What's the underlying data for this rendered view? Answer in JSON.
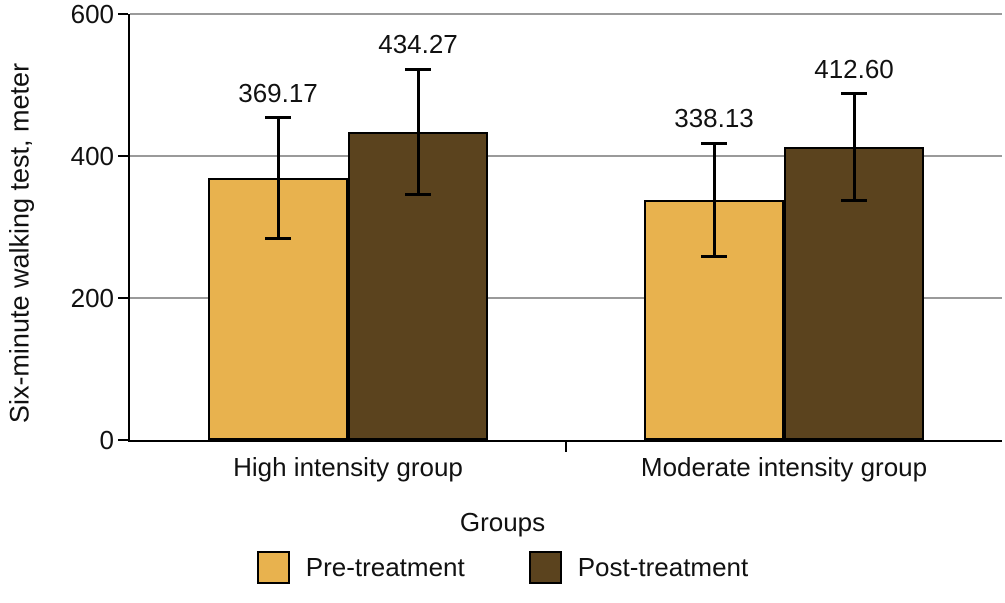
{
  "figure": {
    "background": "#ffffff"
  },
  "chart_data": {
    "type": "bar",
    "title": "",
    "xlabel": "Groups",
    "ylabel": "Six-minute walking test, meter",
    "categories": [
      "High intensity group",
      "Moderate intensity group"
    ],
    "series": [
      {
        "name": "Pre-treatment",
        "color": "#e8b24e",
        "values": [
          369.17,
          338.13
        ],
        "value_labels": [
          "369.17",
          "338.13"
        ],
        "errors": [
          85,
          80
        ]
      },
      {
        "name": "Post-treatment",
        "color": "#5b431e",
        "values": [
          434.27,
          412.6
        ],
        "value_labels": [
          "434.27",
          "412.60"
        ],
        "errors": [
          88,
          75
        ]
      }
    ],
    "ylim": [
      0,
      600
    ],
    "yticks": [
      0,
      200,
      400,
      600
    ],
    "grid": true,
    "gridline_color": "#9a9a9a",
    "axis_color": "#000000",
    "legend_position": "bottom"
  }
}
